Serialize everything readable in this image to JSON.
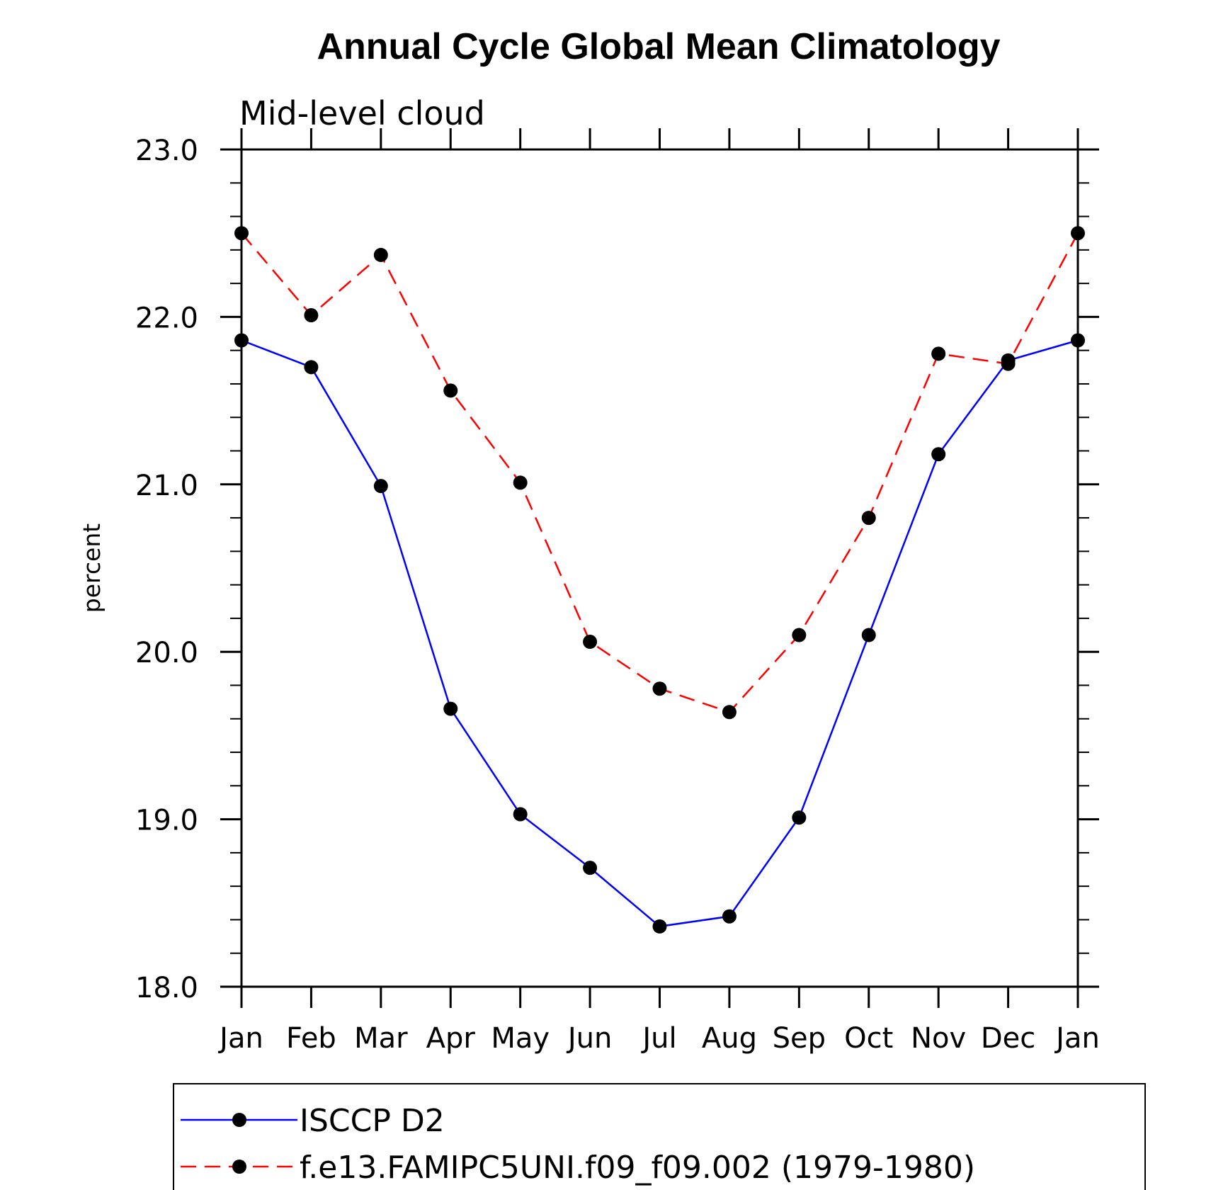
{
  "chart_data": {
    "type": "line",
    "title": "Annual Cycle Global Mean Climatology",
    "subtitle": "Mid-level cloud",
    "ylabel": "percent",
    "xlabel": "",
    "categories": [
      "Jan",
      "Feb",
      "Mar",
      "Apr",
      "May",
      "Jun",
      "Jul",
      "Aug",
      "Sep",
      "Oct",
      "Nov",
      "Dec",
      "Jan"
    ],
    "ylim": [
      18.0,
      23.0
    ],
    "yticks": [
      "18.0",
      "19.0",
      "20.0",
      "21.0",
      "22.0",
      "23.0"
    ],
    "yminor_step": 0.2,
    "grid": false,
    "legend_position": "bottom",
    "series": [
      {
        "name": "ISCCP D2",
        "color": "#0000ff",
        "dash": "solid",
        "marker": "filled-circle",
        "values": [
          21.86,
          21.7,
          20.99,
          19.66,
          19.03,
          18.71,
          18.36,
          18.42,
          19.01,
          20.1,
          21.18,
          21.74,
          21.86
        ]
      },
      {
        "name": "f.e13.FAMIPC5UNI.f09_f09.002 (1979-1980)",
        "color": "#ff0000",
        "dash": "dashed",
        "marker": "filled-circle",
        "values": [
          22.5,
          22.01,
          22.37,
          21.56,
          21.01,
          20.06,
          19.78,
          19.64,
          20.1,
          20.8,
          21.78,
          21.72,
          22.5
        ]
      }
    ]
  }
}
